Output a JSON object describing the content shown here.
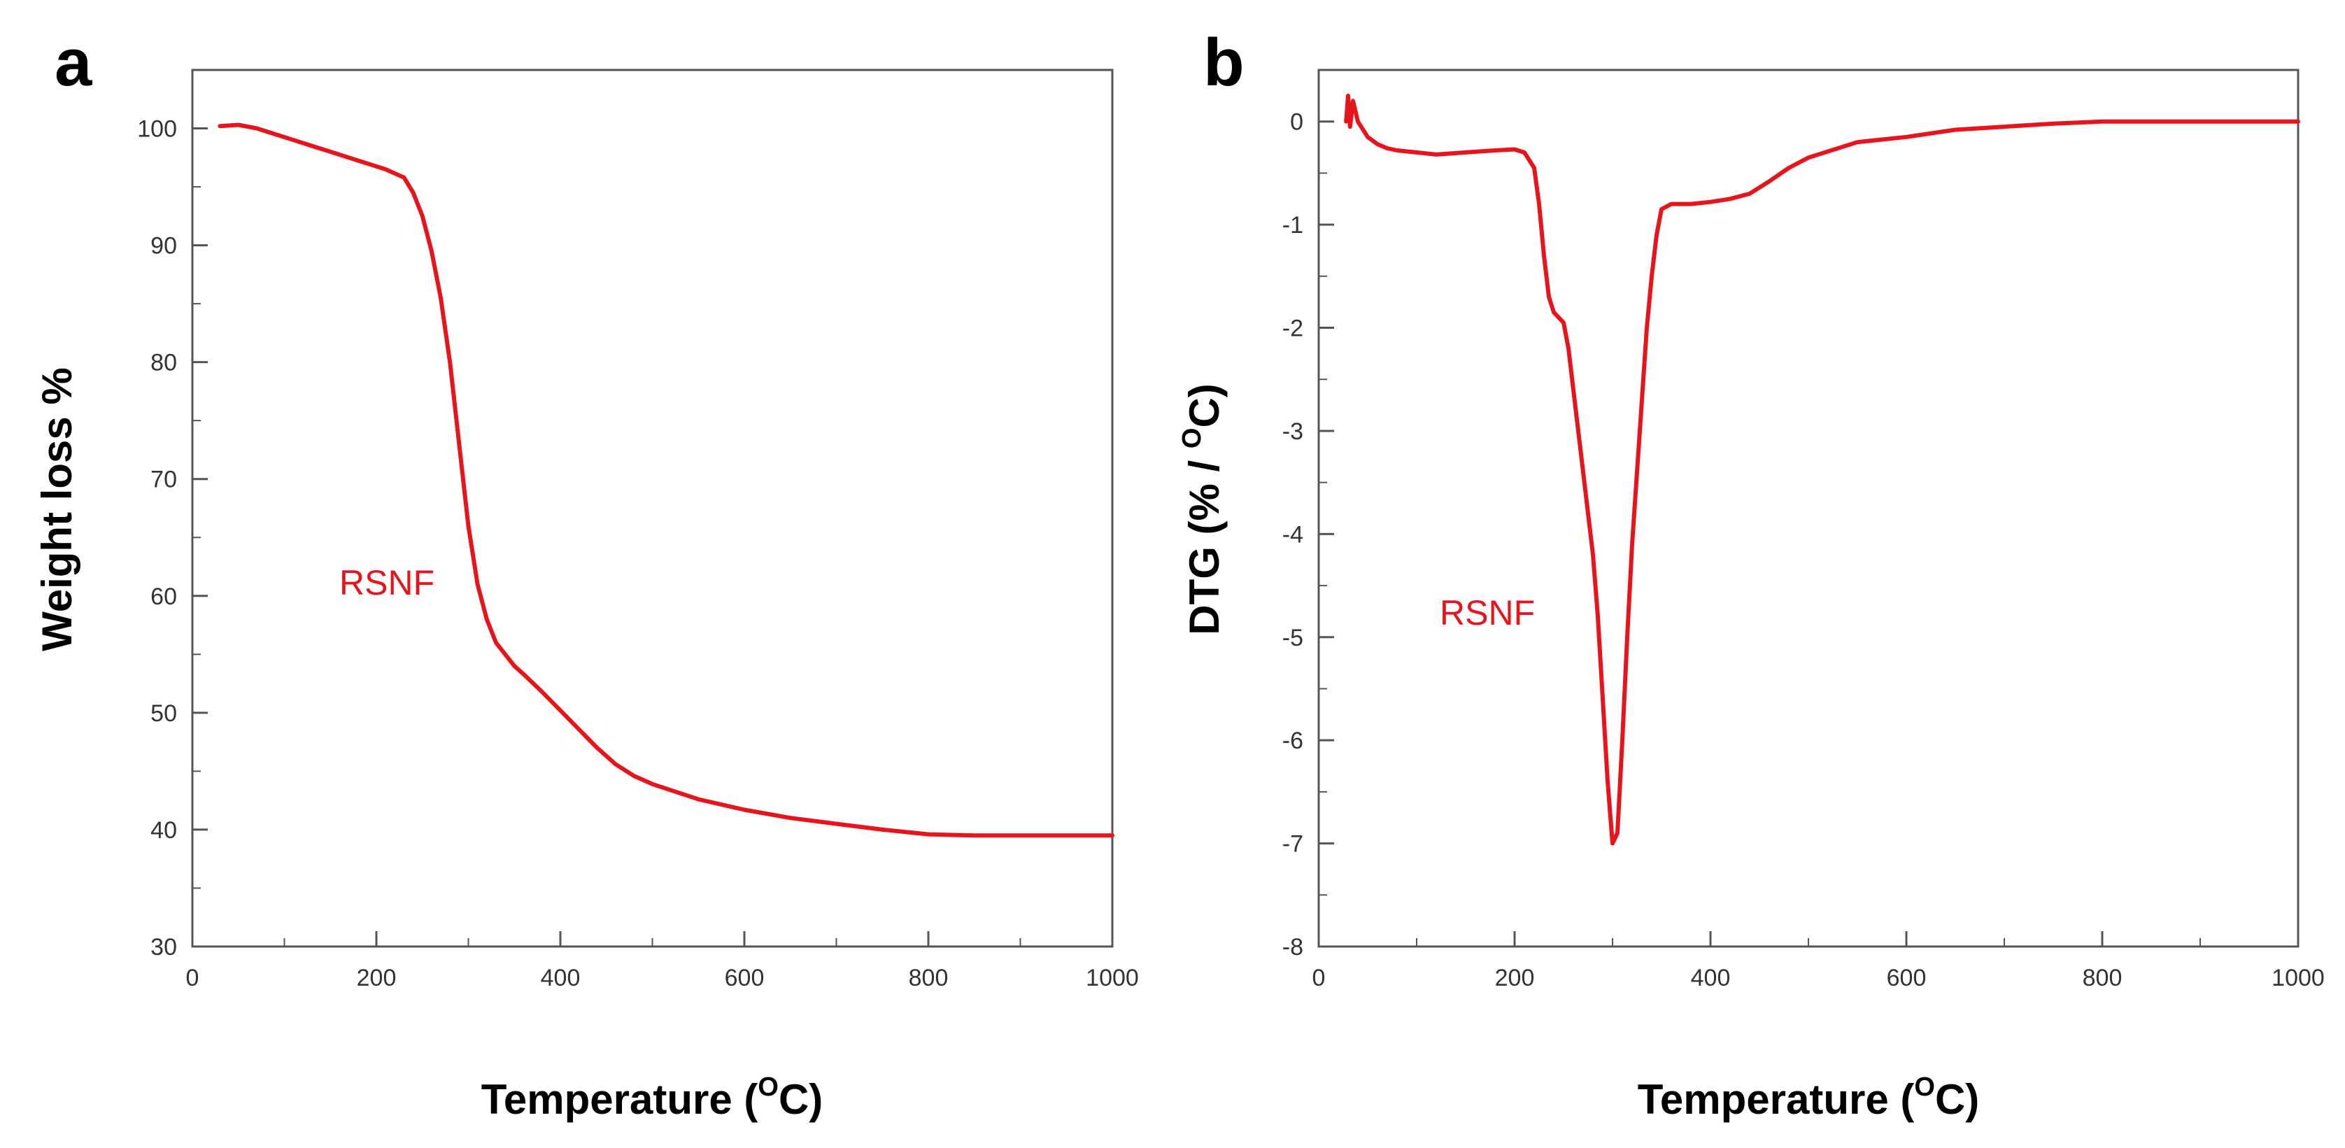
{
  "chart_data": [
    {
      "panel": "a",
      "type": "line",
      "xlabel_main": "Temperature (",
      "xlabel_sup": "O",
      "xlabel_end": "C)",
      "ylabel": "Weight loss %",
      "xlim": [
        0,
        1000
      ],
      "ylim": [
        30,
        105
      ],
      "xticks": [
        0,
        200,
        400,
        600,
        800,
        1000
      ],
      "yticks": [
        30,
        40,
        50,
        60,
        70,
        80,
        90,
        100
      ],
      "annotation": "RSNF",
      "series": [
        {
          "name": "RSNF",
          "color": "#e8141b",
          "x": [
            30,
            50,
            70,
            90,
            110,
            130,
            150,
            170,
            190,
            210,
            230,
            240,
            250,
            260,
            270,
            280,
            290,
            300,
            310,
            320,
            330,
            340,
            350,
            360,
            380,
            400,
            420,
            440,
            460,
            480,
            500,
            550,
            600,
            650,
            700,
            750,
            800,
            850,
            900,
            950,
            1000
          ],
          "y": [
            100.2,
            100.3,
            100.0,
            99.5,
            99.0,
            98.5,
            98.0,
            97.5,
            97.0,
            96.5,
            95.8,
            94.5,
            92.5,
            89.5,
            85.5,
            80.0,
            73.0,
            66.0,
            61.0,
            58.0,
            56.0,
            55.0,
            54.0,
            53.3,
            51.8,
            50.2,
            48.6,
            47.0,
            45.6,
            44.6,
            43.9,
            42.6,
            41.7,
            41.0,
            40.5,
            40.0,
            39.6,
            39.5,
            39.5,
            39.5,
            39.5
          ]
        }
      ]
    },
    {
      "panel": "b",
      "type": "line",
      "xlabel_main": "Temperature (",
      "xlabel_sup": "O",
      "xlabel_end": "C)",
      "ylabel_main": "DTG (% / ",
      "ylabel_sup": "O",
      "ylabel_end": "C)",
      "xlim": [
        0,
        1000
      ],
      "ylim": [
        -8,
        0.5
      ],
      "xticks": [
        0,
        200,
        400,
        600,
        800,
        1000
      ],
      "yticks": [
        0,
        -1,
        -2,
        -3,
        -4,
        -5,
        -6,
        -7,
        -8
      ],
      "annotation": "RSNF",
      "series": [
        {
          "name": "RSNF",
          "color": "#e8141b",
          "x": [
            28,
            30,
            32,
            35,
            40,
            50,
            60,
            70,
            80,
            100,
            120,
            150,
            180,
            200,
            210,
            220,
            225,
            230,
            235,
            240,
            245,
            250,
            255,
            260,
            265,
            270,
            275,
            280,
            285,
            290,
            295,
            300,
            305,
            310,
            315,
            320,
            325,
            330,
            335,
            340,
            345,
            350,
            360,
            370,
            380,
            400,
            420,
            440,
            460,
            480,
            500,
            550,
            600,
            650,
            700,
            750,
            800,
            850,
            900,
            950,
            1000
          ],
          "y": [
            0.0,
            0.25,
            -0.05,
            0.2,
            0.0,
            -0.15,
            -0.22,
            -0.26,
            -0.28,
            -0.3,
            -0.32,
            -0.3,
            -0.28,
            -0.27,
            -0.3,
            -0.45,
            -0.8,
            -1.3,
            -1.7,
            -1.85,
            -1.9,
            -1.95,
            -2.2,
            -2.6,
            -3.0,
            -3.4,
            -3.8,
            -4.2,
            -4.8,
            -5.6,
            -6.4,
            -7.0,
            -6.9,
            -6.0,
            -5.0,
            -4.1,
            -3.4,
            -2.7,
            -2.0,
            -1.5,
            -1.1,
            -0.85,
            -0.8,
            -0.8,
            -0.8,
            -0.78,
            -0.75,
            -0.7,
            -0.58,
            -0.45,
            -0.35,
            -0.2,
            -0.15,
            -0.08,
            -0.05,
            -0.02,
            0.0,
            0.0,
            0.0,
            0.0,
            0.0
          ]
        }
      ]
    }
  ],
  "panel_letters": [
    "a",
    "b"
  ]
}
